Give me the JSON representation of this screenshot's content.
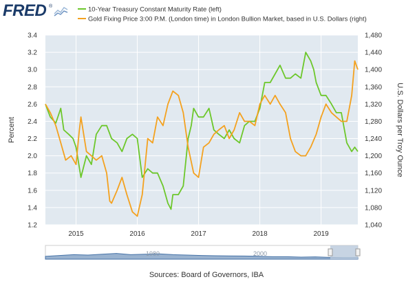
{
  "brand": {
    "logo_text": "FRED",
    "reg_mark": "®"
  },
  "legend": {
    "treasury": "10-Year Treasury Constant Maturity Rate (left)",
    "gold": "Gold Fixing Price 3:00 P.M. (London time) in London Bullion Market, based in U.S. Dollars (right)"
  },
  "colors": {
    "treasury": "#6cc72a",
    "gold": "#f4a11e",
    "plot_bg": "#e1e9f0",
    "grid": "#ffffff",
    "navigator_fill": "#4572a7",
    "navigator_bg": "#ffffff",
    "navigator_selection": "#b9c9dc"
  },
  "sources_text": "Sources: Board of Governors, IBA",
  "navigator": {
    "labels": [
      "1980",
      "2000"
    ]
  },
  "chart_data": {
    "type": "line",
    "x_ticks": [
      "2015",
      "2016",
      "2017",
      "2018",
      "2019"
    ],
    "x_range": [
      2014.5,
      2019.6
    ],
    "left_axis": {
      "label": "Percent",
      "range": [
        1.2,
        3.4
      ],
      "ticks": [
        "1.2",
        "1.4",
        "1.6",
        "1.8",
        "2.0",
        "2.2",
        "2.4",
        "2.6",
        "2.8",
        "3.0",
        "3.2",
        "3.4"
      ]
    },
    "right_axis": {
      "label": "U.S. Dollars per Troy Ounce",
      "range": [
        1040,
        1480
      ],
      "ticks": [
        "1,040",
        "1,080",
        "1,120",
        "1,160",
        "1,200",
        "1,240",
        "1,280",
        "1,320",
        "1,360",
        "1,400",
        "1,440",
        "1,480"
      ]
    },
    "series": [
      {
        "name": "10-Year Treasury Constant Maturity Rate (left)",
        "axis": "left",
        "x": [
          2014.5,
          2014.58,
          2014.67,
          2014.75,
          2014.8,
          2014.88,
          2014.95,
          2015.0,
          2015.08,
          2015.17,
          2015.25,
          2015.33,
          2015.42,
          2015.5,
          2015.58,
          2015.67,
          2015.75,
          2015.83,
          2015.92,
          2016.0,
          2016.08,
          2016.17,
          2016.25,
          2016.33,
          2016.42,
          2016.5,
          2016.55,
          2016.58,
          2016.67,
          2016.75,
          2016.83,
          2016.88,
          2016.92,
          2017.0,
          2017.08,
          2017.17,
          2017.25,
          2017.33,
          2017.42,
          2017.5,
          2017.58,
          2017.67,
          2017.75,
          2017.83,
          2017.92,
          2018.0,
          2018.08,
          2018.17,
          2018.25,
          2018.33,
          2018.42,
          2018.5,
          2018.58,
          2018.67,
          2018.75,
          2018.83,
          2018.88,
          2018.92,
          2019.0,
          2019.08,
          2019.17,
          2019.25,
          2019.33,
          2019.42,
          2019.5,
          2019.55,
          2019.6
        ],
        "y": [
          2.6,
          2.45,
          2.38,
          2.55,
          2.3,
          2.25,
          2.2,
          2.1,
          1.75,
          2.0,
          1.9,
          2.25,
          2.35,
          2.35,
          2.2,
          2.15,
          2.05,
          2.2,
          2.25,
          2.2,
          1.75,
          1.85,
          1.8,
          1.8,
          1.65,
          1.45,
          1.38,
          1.55,
          1.55,
          1.65,
          2.2,
          2.35,
          2.55,
          2.45,
          2.45,
          2.55,
          2.3,
          2.25,
          2.2,
          2.3,
          2.2,
          2.15,
          2.35,
          2.4,
          2.4,
          2.55,
          2.85,
          2.85,
          2.95,
          3.05,
          2.9,
          2.9,
          2.95,
          2.9,
          3.2,
          3.1,
          3.0,
          2.85,
          2.7,
          2.7,
          2.6,
          2.5,
          2.5,
          2.15,
          2.05,
          2.1,
          2.05
        ]
      },
      {
        "name": "Gold Fixing Price 3:00 P.M. (London time) in London Bullion Market, based in U.S. Dollars (right)",
        "axis": "right",
        "x": [
          2014.5,
          2014.58,
          2014.67,
          2014.75,
          2014.83,
          2014.92,
          2015.0,
          2015.05,
          2015.08,
          2015.17,
          2015.25,
          2015.33,
          2015.42,
          2015.5,
          2015.55,
          2015.58,
          2015.67,
          2015.75,
          2015.83,
          2015.92,
          2016.0,
          2016.08,
          2016.17,
          2016.25,
          2016.33,
          2016.42,
          2016.5,
          2016.58,
          2016.67,
          2016.75,
          2016.83,
          2016.92,
          2017.0,
          2017.08,
          2017.17,
          2017.25,
          2017.33,
          2017.42,
          2017.5,
          2017.58,
          2017.67,
          2017.75,
          2017.83,
          2017.92,
          2018.0,
          2018.08,
          2018.17,
          2018.25,
          2018.33,
          2018.42,
          2018.5,
          2018.58,
          2018.67,
          2018.75,
          2018.83,
          2018.92,
          2019.0,
          2019.08,
          2019.17,
          2019.25,
          2019.33,
          2019.42,
          2019.5,
          2019.55,
          2019.6
        ],
        "y": [
          1320,
          1300,
          1270,
          1230,
          1190,
          1200,
          1180,
          1255,
          1290,
          1210,
          1200,
          1190,
          1200,
          1160,
          1095,
          1090,
          1120,
          1150,
          1110,
          1070,
          1060,
          1110,
          1240,
          1230,
          1290,
          1270,
          1320,
          1350,
          1340,
          1300,
          1220,
          1160,
          1150,
          1220,
          1230,
          1250,
          1260,
          1270,
          1240,
          1260,
          1300,
          1280,
          1280,
          1270,
          1320,
          1340,
          1320,
          1340,
          1320,
          1300,
          1240,
          1210,
          1200,
          1200,
          1220,
          1250,
          1290,
          1320,
          1300,
          1290,
          1280,
          1280,
          1340,
          1420,
          1400
        ]
      }
    ]
  }
}
